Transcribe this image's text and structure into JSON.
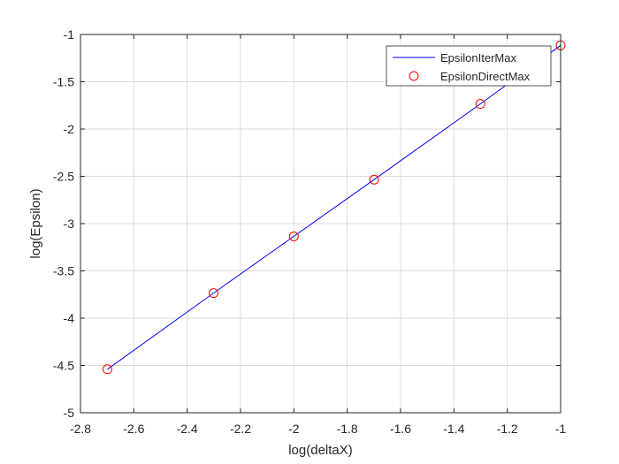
{
  "chart_data": {
    "type": "line",
    "title": "",
    "xlabel": "log(deltaX)",
    "ylabel": "log(Epsilon)",
    "xlim": [
      -2.8,
      -1
    ],
    "ylim": [
      -5,
      -1
    ],
    "xticks": [
      "-2.8",
      "-2.6",
      "-2.4",
      "-2.2",
      "-2",
      "-1.8",
      "-1.6",
      "-1.4",
      "-1.2",
      "-1"
    ],
    "yticks": [
      "-1",
      "-1.5",
      "-2",
      "-2.5",
      "-3",
      "-3.5",
      "-4",
      "-4.5",
      "-5"
    ],
    "grid": true,
    "legend_position": "top-right",
    "series": [
      {
        "name": "EpsilonIterMax",
        "style": "line",
        "color": "#0000ff",
        "x": [
          -2.699,
          -2.301,
          -2.0,
          -1.699,
          -1.301,
          -1.0
        ],
        "y": [
          -4.54,
          -3.735,
          -3.135,
          -2.535,
          -1.735,
          -1.115
        ]
      },
      {
        "name": "EpsilonDirectMax",
        "style": "circle-marker",
        "color": "#ff0000",
        "x": [
          -2.699,
          -2.301,
          -2.0,
          -1.699,
          -1.301,
          -1.0
        ],
        "y": [
          -4.54,
          -3.735,
          -3.135,
          -2.535,
          -1.735,
          -1.115
        ]
      }
    ]
  }
}
